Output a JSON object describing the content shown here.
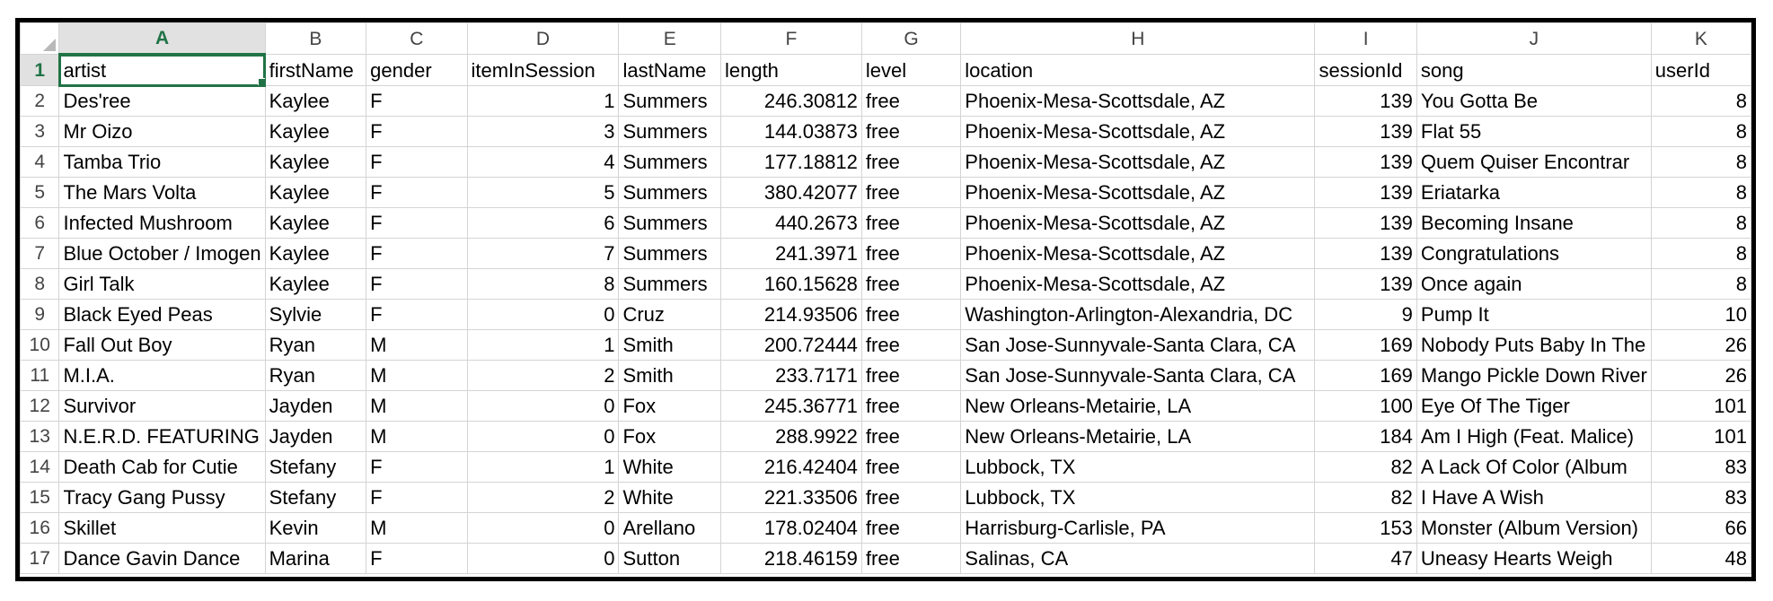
{
  "sheet": {
    "columns": [
      "A",
      "B",
      "C",
      "D",
      "E",
      "F",
      "G",
      "H",
      "I",
      "J",
      "K"
    ],
    "active_column": "A",
    "active_row": "1",
    "header_row": {
      "row_number": "1",
      "cells": [
        "artist",
        "firstName",
        "gender",
        "itemInSession",
        "lastName",
        "length",
        "level",
        "location",
        "sessionId",
        "song",
        "userId"
      ]
    },
    "rows": [
      {
        "row_number": "2",
        "cells": [
          "Des'ree",
          "Kaylee",
          "F",
          "1",
          "Summers",
          "246.30812",
          "free",
          "Phoenix-Mesa-Scottsdale, AZ",
          "139",
          "You Gotta Be",
          "8"
        ]
      },
      {
        "row_number": "3",
        "cells": [
          "Mr Oizo",
          "Kaylee",
          "F",
          "3",
          "Summers",
          "144.03873",
          "free",
          "Phoenix-Mesa-Scottsdale, AZ",
          "139",
          "Flat 55",
          "8"
        ]
      },
      {
        "row_number": "4",
        "cells": [
          "Tamba Trio",
          "Kaylee",
          "F",
          "4",
          "Summers",
          "177.18812",
          "free",
          "Phoenix-Mesa-Scottsdale, AZ",
          "139",
          "Quem Quiser Encontrar",
          "8"
        ]
      },
      {
        "row_number": "5",
        "cells": [
          "The Mars Volta",
          "Kaylee",
          "F",
          "5",
          "Summers",
          "380.42077",
          "free",
          "Phoenix-Mesa-Scottsdale, AZ",
          "139",
          "Eriatarka",
          "8"
        ]
      },
      {
        "row_number": "6",
        "cells": [
          "Infected Mushroom",
          "Kaylee",
          "F",
          "6",
          "Summers",
          "440.2673",
          "free",
          "Phoenix-Mesa-Scottsdale, AZ",
          "139",
          "Becoming Insane",
          "8"
        ]
      },
      {
        "row_number": "7",
        "cells": [
          "Blue October / Imogen",
          "Kaylee",
          "F",
          "7",
          "Summers",
          "241.3971",
          "free",
          "Phoenix-Mesa-Scottsdale, AZ",
          "139",
          "Congratulations",
          "8"
        ]
      },
      {
        "row_number": "8",
        "cells": [
          "Girl Talk",
          "Kaylee",
          "F",
          "8",
          "Summers",
          "160.15628",
          "free",
          "Phoenix-Mesa-Scottsdale, AZ",
          "139",
          "Once again",
          "8"
        ]
      },
      {
        "row_number": "9",
        "cells": [
          "Black Eyed Peas",
          "Sylvie",
          "F",
          "0",
          "Cruz",
          "214.93506",
          "free",
          "Washington-Arlington-Alexandria, DC",
          "9",
          "Pump It",
          "10"
        ]
      },
      {
        "row_number": "10",
        "cells": [
          "Fall Out Boy",
          "Ryan",
          "M",
          "1",
          "Smith",
          "200.72444",
          "free",
          "San Jose-Sunnyvale-Santa Clara, CA",
          "169",
          "Nobody Puts Baby In The",
          "26"
        ]
      },
      {
        "row_number": "11",
        "cells": [
          "M.I.A.",
          "Ryan",
          "M",
          "2",
          "Smith",
          "233.7171",
          "free",
          "San Jose-Sunnyvale-Santa Clara, CA",
          "169",
          "Mango Pickle Down River",
          "26"
        ]
      },
      {
        "row_number": "12",
        "cells": [
          "Survivor",
          "Jayden",
          "M",
          "0",
          "Fox",
          "245.36771",
          "free",
          "New Orleans-Metairie, LA",
          "100",
          "Eye Of The Tiger",
          "101"
        ]
      },
      {
        "row_number": "13",
        "cells": [
          "N.E.R.D. FEATURING",
          "Jayden",
          "M",
          "0",
          "Fox",
          "288.9922",
          "free",
          "New Orleans-Metairie, LA",
          "184",
          "Am I High (Feat. Malice)",
          "101"
        ]
      },
      {
        "row_number": "14",
        "cells": [
          "Death Cab for Cutie",
          "Stefany",
          "F",
          "1",
          "White",
          "216.42404",
          "free",
          "Lubbock, TX",
          "82",
          "A Lack Of Color (Album",
          "83"
        ]
      },
      {
        "row_number": "15",
        "cells": [
          "Tracy Gang Pussy",
          "Stefany",
          "F",
          "2",
          "White",
          "221.33506",
          "free",
          "Lubbock, TX",
          "82",
          "I Have A Wish",
          "83"
        ]
      },
      {
        "row_number": "16",
        "cells": [
          "Skillet",
          "Kevin",
          "M",
          "0",
          "Arellano",
          "178.02404",
          "free",
          "Harrisburg-Carlisle, PA",
          "153",
          "Monster (Album Version)",
          "66"
        ]
      },
      {
        "row_number": "17",
        "cells": [
          "Dance Gavin Dance",
          "Marina",
          "F",
          "0",
          "Sutton",
          "218.46159",
          "free",
          "Salinas, CA",
          "47",
          "Uneasy Hearts Weigh",
          "48"
        ]
      }
    ],
    "numeric_columns": [
      3,
      5,
      8,
      10
    ],
    "colors": {
      "accent": "#217346",
      "header_bg": "#e1e1e1",
      "gridline": "#d4d4d4"
    }
  }
}
